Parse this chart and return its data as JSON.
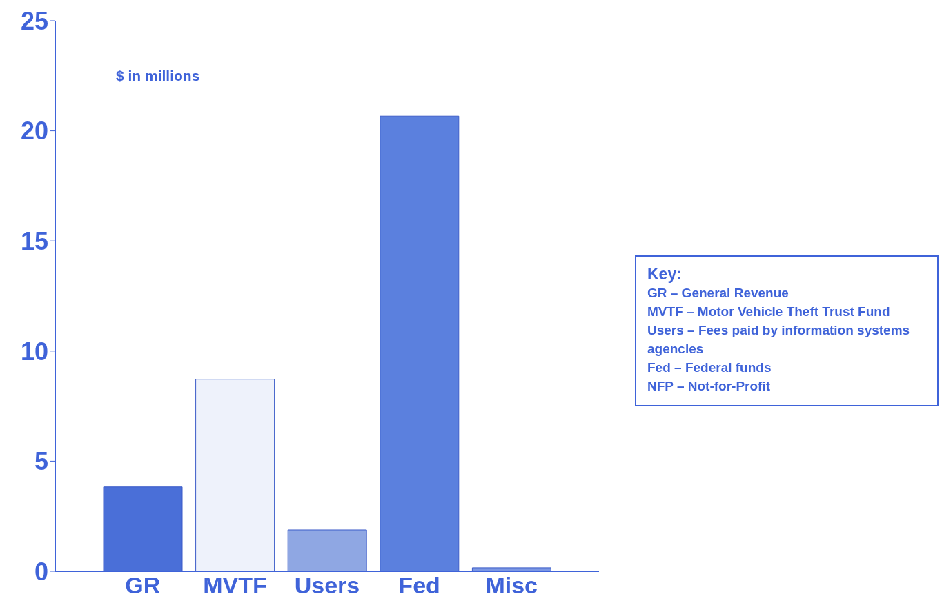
{
  "chart_data": {
    "type": "bar",
    "categories": [
      "GR",
      "MVTF",
      "Users",
      "Fed",
      "Misc"
    ],
    "values": [
      3.83,
      8.72,
      1.88,
      20.67,
      0.16
    ],
    "colors": [
      "#4a6fd8",
      "#eef2fb",
      "#8fa7e3",
      "#5b80de",
      "#7b97e4"
    ],
    "ylim": [
      0,
      25
    ],
    "yticks": [
      0,
      5,
      10,
      15,
      20,
      25
    ],
    "grid": false,
    "annotations": [
      "$ in millions",
      "Key:",
      "GR – General Revenue",
      "MVTF – Motor Vehicle Theft Trust Fund",
      "Users – Fees paid by information systems agencies",
      "Fed – Federal funds",
      "NFP – Not-for-Profit"
    ]
  }
}
